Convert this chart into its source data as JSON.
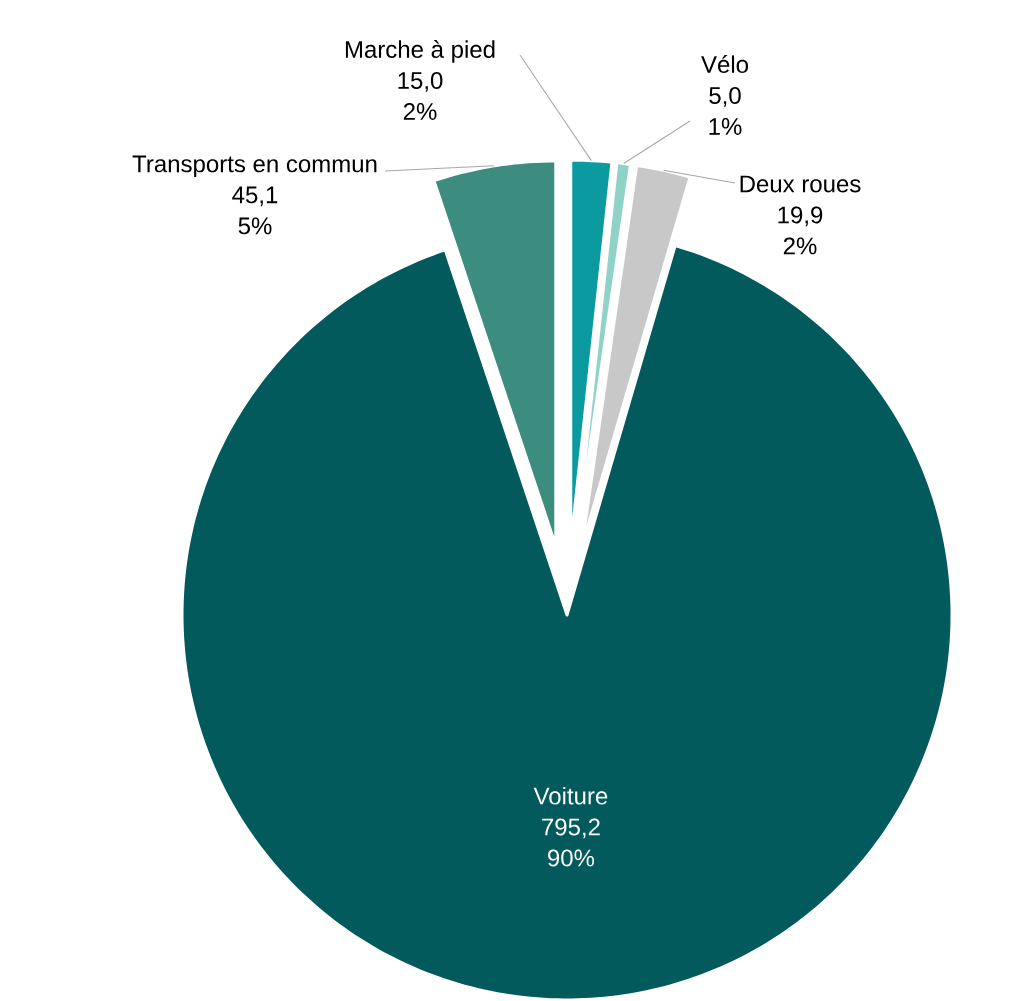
{
  "chart_data": {
    "type": "pie",
    "categories": [
      "Marche à pied",
      "Vélo",
      "Deux roues",
      "Voiture",
      "Transports en commun"
    ],
    "values": [
      15.0,
      5.0,
      19.9,
      795.2,
      45.1
    ],
    "value_labels": [
      "15,0",
      "5,0",
      "19,9",
      "795,2",
      "45,1"
    ],
    "annotations": [
      "2%",
      "1%",
      "2%",
      "90%",
      "5%"
    ],
    "colors": [
      "#0a9aa0",
      "#8fd3c8",
      "#c8c8c8",
      "#035a5c",
      "#3d8c80"
    ]
  }
}
